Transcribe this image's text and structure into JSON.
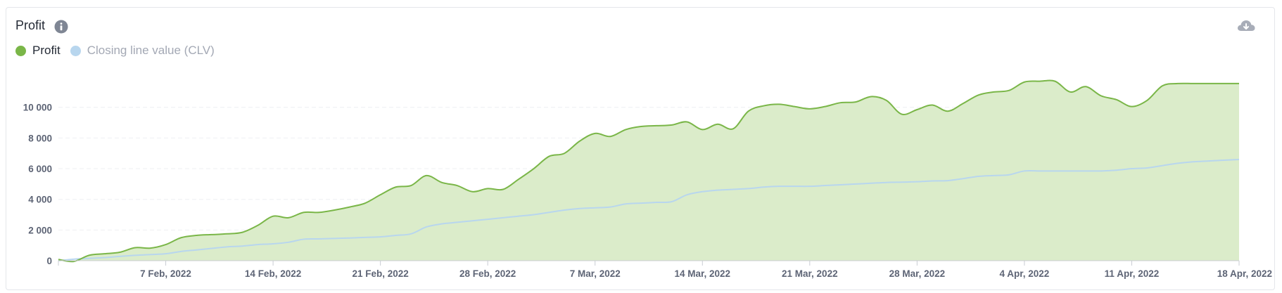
{
  "header": {
    "title": "Profit",
    "info_icon": "info-circle-icon",
    "download_icon": "cloud-download-icon"
  },
  "colors": {
    "profit_line": "#7ab648",
    "profit_fill": "#dbecca",
    "clv_line": "#b8d6ee",
    "clv_dot": "#b8d6ee",
    "axis_text": "#5d6475",
    "grid": "#eeeff2",
    "title": "#252b36",
    "icon": "#7f8694"
  },
  "legend": [
    {
      "label": "Profit",
      "color": "#7ab648",
      "text_color": "#252b36"
    },
    {
      "label": "Closing line value (CLV)",
      "color": "#b8d6ee",
      "text_color": "#a3a8b4"
    }
  ],
  "chart_data": {
    "type": "area",
    "title": "Profit",
    "x_start": "2022-01-31",
    "x_end": "2022-04-18",
    "x_tick_labels": [
      "7 Feb, 2022",
      "14 Feb, 2022",
      "21 Feb, 2022",
      "28 Feb, 2022",
      "7 Mar, 2022",
      "14 Mar, 2022",
      "21 Mar, 2022",
      "28 Mar, 2022",
      "4 Apr, 2022",
      "11 Apr, 2022",
      "18 Apr, 2022"
    ],
    "x_tick_dates": [
      "2022-02-07",
      "2022-02-14",
      "2022-02-21",
      "2022-02-28",
      "2022-03-07",
      "2022-03-14",
      "2022-03-21",
      "2022-03-28",
      "2022-04-04",
      "2022-04-11",
      "2022-04-18"
    ],
    "ylim": [
      0,
      11500
    ],
    "y_ticks": [
      0,
      2000,
      4000,
      6000,
      8000,
      10000
    ],
    "y_tick_labels": [
      "0",
      "2 000",
      "4 000",
      "6 000",
      "8 000",
      "10 000"
    ],
    "grid": true,
    "legend_position": "top-left",
    "series": [
      {
        "name": "Profit",
        "type": "area",
        "x": [
          "2022-01-31",
          "2022-02-01",
          "2022-02-02",
          "2022-02-03",
          "2022-02-04",
          "2022-02-05",
          "2022-02-06",
          "2022-02-07",
          "2022-02-08",
          "2022-02-09",
          "2022-02-10",
          "2022-02-11",
          "2022-02-12",
          "2022-02-13",
          "2022-02-14",
          "2022-02-15",
          "2022-02-16",
          "2022-02-17",
          "2022-02-18",
          "2022-02-19",
          "2022-02-20",
          "2022-02-21",
          "2022-02-22",
          "2022-02-23",
          "2022-02-24",
          "2022-02-25",
          "2022-02-26",
          "2022-02-27",
          "2022-02-28",
          "2022-03-01",
          "2022-03-02",
          "2022-03-03",
          "2022-03-04",
          "2022-03-05",
          "2022-03-06",
          "2022-03-07",
          "2022-03-08",
          "2022-03-09",
          "2022-03-10",
          "2022-03-11",
          "2022-03-12",
          "2022-03-13",
          "2022-03-14",
          "2022-03-15",
          "2022-03-16",
          "2022-03-17",
          "2022-03-18",
          "2022-03-19",
          "2022-03-20",
          "2022-03-21",
          "2022-03-22",
          "2022-03-23",
          "2022-03-24",
          "2022-03-25",
          "2022-03-26",
          "2022-03-27",
          "2022-03-28",
          "2022-03-29",
          "2022-03-30",
          "2022-03-31",
          "2022-04-01",
          "2022-04-02",
          "2022-04-03",
          "2022-04-04",
          "2022-04-05",
          "2022-04-06",
          "2022-04-07",
          "2022-04-08",
          "2022-04-09",
          "2022-04-10",
          "2022-04-11",
          "2022-04-12",
          "2022-04-13",
          "2022-04-14",
          "2022-04-15",
          "2022-04-16",
          "2022-04-17",
          "2022-04-18"
        ],
        "values": [
          80,
          -50,
          350,
          450,
          550,
          850,
          820,
          1050,
          1500,
          1650,
          1700,
          1750,
          1850,
          2300,
          2900,
          2800,
          3150,
          3150,
          3300,
          3500,
          3750,
          4300,
          4800,
          4900,
          5550,
          5100,
          4900,
          4500,
          4700,
          4650,
          5300,
          6000,
          6800,
          7000,
          7800,
          8300,
          8100,
          8550,
          8750,
          8800,
          8850,
          9050,
          8550,
          8900,
          8600,
          9750,
          10100,
          10200,
          10050,
          9900,
          10050,
          10300,
          10350,
          10700,
          10450,
          9550,
          9850,
          10150,
          9750,
          10250,
          10800,
          11000,
          11100,
          11650,
          11700,
          11700,
          11000,
          11350,
          10750,
          10500,
          10050,
          10450,
          11400,
          11550,
          11550,
          11550,
          11550,
          11550
        ]
      },
      {
        "name": "Closing line value (CLV)",
        "type": "line",
        "x": [
          "2022-01-31",
          "2022-02-01",
          "2022-02-02",
          "2022-02-03",
          "2022-02-04",
          "2022-02-05",
          "2022-02-06",
          "2022-02-07",
          "2022-02-08",
          "2022-02-09",
          "2022-02-10",
          "2022-02-11",
          "2022-02-12",
          "2022-02-13",
          "2022-02-14",
          "2022-02-15",
          "2022-02-16",
          "2022-02-17",
          "2022-02-18",
          "2022-02-19",
          "2022-02-20",
          "2022-02-21",
          "2022-02-22",
          "2022-02-23",
          "2022-02-24",
          "2022-02-25",
          "2022-02-26",
          "2022-02-27",
          "2022-02-28",
          "2022-03-01",
          "2022-03-02",
          "2022-03-03",
          "2022-03-04",
          "2022-03-05",
          "2022-03-06",
          "2022-03-07",
          "2022-03-08",
          "2022-03-09",
          "2022-03-10",
          "2022-03-11",
          "2022-03-12",
          "2022-03-13",
          "2022-03-14",
          "2022-03-15",
          "2022-03-16",
          "2022-03-17",
          "2022-03-18",
          "2022-03-19",
          "2022-03-20",
          "2022-03-21",
          "2022-03-22",
          "2022-03-23",
          "2022-03-24",
          "2022-03-25",
          "2022-03-26",
          "2022-03-27",
          "2022-03-28",
          "2022-03-29",
          "2022-03-30",
          "2022-03-31",
          "2022-04-01",
          "2022-04-02",
          "2022-04-03",
          "2022-04-04",
          "2022-04-05",
          "2022-04-06",
          "2022-04-07",
          "2022-04-08",
          "2022-04-09",
          "2022-04-10",
          "2022-04-11",
          "2022-04-12",
          "2022-04-13",
          "2022-04-14",
          "2022-04-15",
          "2022-04-16",
          "2022-04-17",
          "2022-04-18"
        ],
        "values": [
          0,
          100,
          150,
          200,
          280,
          350,
          400,
          450,
          600,
          700,
          800,
          900,
          950,
          1050,
          1100,
          1200,
          1400,
          1420,
          1450,
          1480,
          1520,
          1550,
          1650,
          1750,
          2200,
          2400,
          2500,
          2600,
          2700,
          2800,
          2900,
          3000,
          3150,
          3300,
          3400,
          3450,
          3500,
          3700,
          3750,
          3800,
          3850,
          4300,
          4500,
          4600,
          4650,
          4700,
          4800,
          4850,
          4850,
          4850,
          4900,
          4950,
          5000,
          5050,
          5100,
          5120,
          5150,
          5200,
          5220,
          5350,
          5500,
          5550,
          5600,
          5850,
          5850,
          5850,
          5850,
          5850,
          5850,
          5900,
          6000,
          6050,
          6200,
          6350,
          6450,
          6500,
          6550,
          6600
        ]
      }
    ]
  }
}
